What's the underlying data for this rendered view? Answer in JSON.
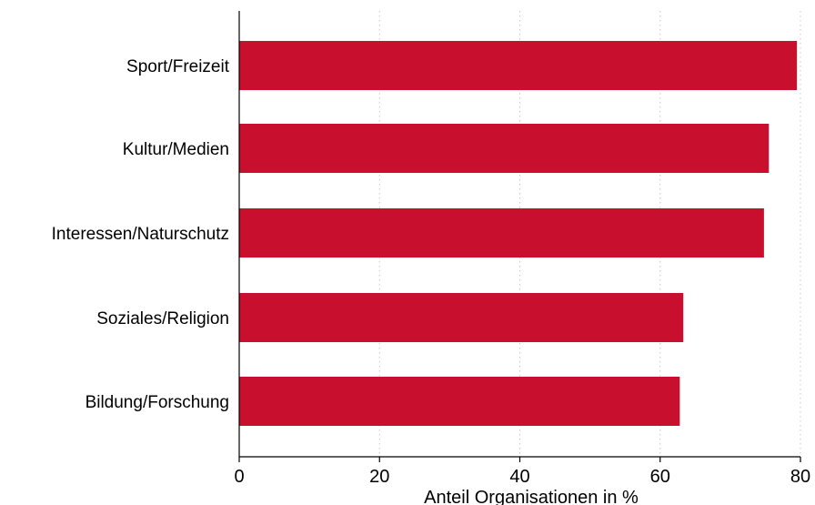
{
  "chart_data": {
    "type": "bar",
    "orientation": "horizontal",
    "categories": [
      "Sport/Freizeit",
      "Kultur/Medien",
      "Interessen/Naturschutz",
      "Soziales/Religion",
      "Bildung/Forschung"
    ],
    "values": [
      79.5,
      75.5,
      74.8,
      63.3,
      62.8
    ],
    "xlabel": "Anteil Organisationen in %",
    "ylabel": "",
    "xlim": [
      0,
      80
    ],
    "xticks": [
      "0",
      "20",
      "40",
      "60",
      "80"
    ],
    "grid": "vertical dotted",
    "colors": {
      "bar": "#C8102E",
      "grid": "#c8c8c8",
      "axis": "#000000"
    }
  }
}
